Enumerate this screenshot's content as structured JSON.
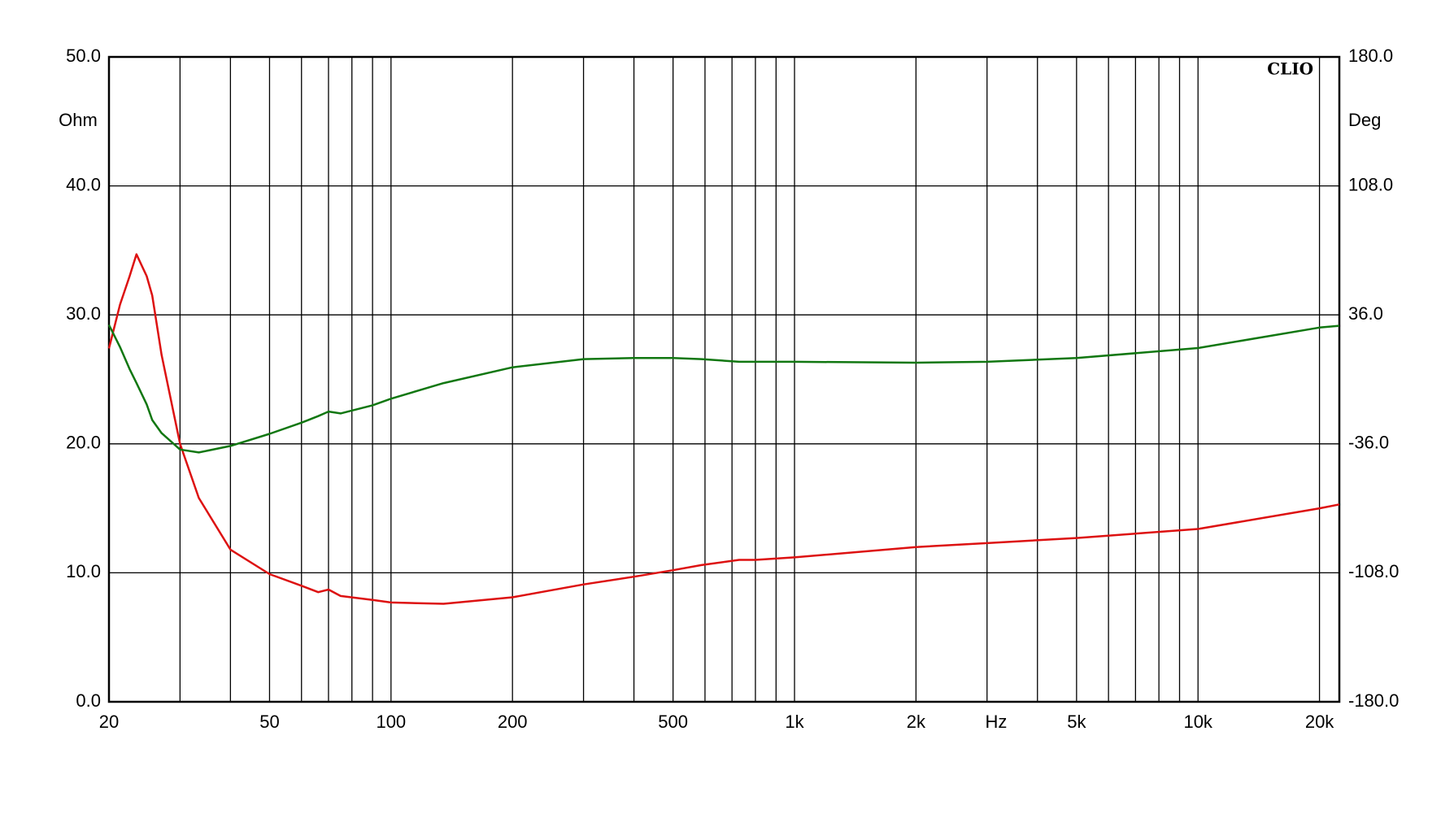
{
  "chart_data": {
    "type": "line",
    "brand": "CLIO",
    "xlabel": "Hz",
    "ylabel": "Ohm",
    "y2label": "Deg",
    "xlog": true,
    "grid": true,
    "x": [
      20,
      21.3,
      22.5,
      23.4,
      24.8,
      25.6,
      27,
      30,
      33.4,
      40,
      50,
      60,
      66,
      70,
      75,
      90,
      100,
      135,
      200,
      300,
      400,
      500,
      588,
      729,
      800,
      1000,
      2000,
      3000,
      5000,
      10000,
      20000,
      22400
    ],
    "series": [
      {
        "color": "#dd1111",
        "axis": "y",
        "values": [
          27.4,
          30.8,
          33.0,
          34.7,
          33.0,
          31.5,
          26.9,
          20.0,
          15.8,
          11.8,
          9.9,
          9.0,
          8.5,
          8.7,
          8.2,
          7.9,
          7.7,
          7.6,
          8.1,
          9.1,
          9.7,
          10.2,
          10.6,
          11.0,
          11.0,
          11.2,
          12.0,
          12.3,
          12.7,
          13.4,
          15.0,
          15.3
        ]
      },
      {
        "color": "#117711",
        "axis": "y2",
        "values": [
          30.4,
          18,
          5.7,
          -2,
          -14,
          -22.7,
          -30,
          -39.2,
          -40.8,
          -37.2,
          -30.4,
          -24.2,
          -20.5,
          -18.0,
          -19.0,
          -14.5,
          -10.8,
          -2.1,
          6.7,
          11.3,
          11.9,
          11.9,
          11.3,
          9.8,
          9.8,
          9.8,
          9.3,
          9.8,
          11.9,
          17.5,
          28.9,
          29.9
        ]
      }
    ],
    "xlim": [
      20,
      22400
    ],
    "xticks": [
      20,
      50,
      100,
      200,
      500,
      {
        "value": 1000,
        "label": "1k"
      },
      {
        "value": 2000,
        "label": "2k"
      },
      {
        "value": 5000,
        "label": "5k"
      },
      {
        "value": 10000,
        "label": "10k"
      },
      {
        "value": 20000,
        "label": "20k"
      }
    ],
    "xminor": [
      30,
      40,
      60,
      70,
      80,
      90,
      300,
      400,
      600,
      700,
      800,
      900,
      3000,
      4000,
      6000,
      7000,
      8000,
      9000
    ],
    "ylim": [
      0,
      50
    ],
    "yticks": [
      {
        "value": 0,
        "label": "0.0"
      },
      {
        "value": 10,
        "label": "10.0"
      },
      {
        "value": 20,
        "label": "20.0"
      },
      {
        "value": 30,
        "label": "30.0"
      },
      {
        "value": 40,
        "label": "40.0"
      },
      {
        "value": 50,
        "label": "50.0"
      }
    ],
    "y2lim": [
      -180,
      180
    ],
    "y2ticks": [
      {
        "value": -180,
        "label": "-180.0"
      },
      {
        "value": -108,
        "label": "-108.0"
      },
      {
        "value": -36,
        "label": "-36.0"
      },
      {
        "value": 36,
        "label": "36.0"
      },
      {
        "value": 108,
        "label": "108.0"
      },
      {
        "value": 180,
        "label": "180.0"
      }
    ]
  }
}
